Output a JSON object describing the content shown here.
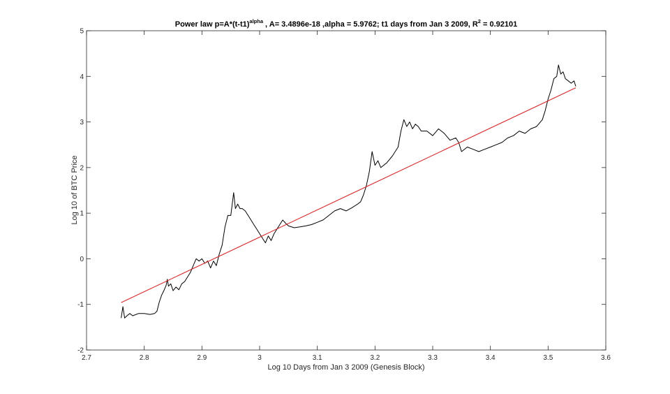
{
  "chart_data": {
    "type": "line",
    "title": {
      "prefix": "Power law p=A*(t-t1)",
      "sup1": "alpha",
      "middle": "  , A= 3.4896e-18 ,alpha = 5.9762; t1 days from Jan 3 2009, R",
      "sup2": "2",
      "suffix": " = 0.92101"
    },
    "xlabel": "Log 10 Days from Jan 3 2009 (Genesis Block)",
    "ylabel": "Log 10 of BTC Price",
    "xlim": [
      2.7,
      3.6
    ],
    "ylim": [
      -2,
      5
    ],
    "xticks": [
      2.7,
      2.8,
      2.9,
      3,
      3.1,
      3.2,
      3.3,
      3.4,
      3.5,
      3.6
    ],
    "xtick_labels": [
      "2.7",
      "2.8",
      "2.9",
      "3",
      "3.1",
      "3.2",
      "3.3",
      "3.4",
      "3.5",
      "3.6"
    ],
    "yticks": [
      -2,
      -1,
      0,
      1,
      2,
      3,
      4,
      5
    ],
    "ytick_labels": [
      "-2",
      "-1",
      "0",
      "1",
      "2",
      "3",
      "4",
      "5"
    ],
    "grid": false,
    "series": [
      {
        "color": "#000000",
        "x": [
          2.76,
          2.763,
          2.766,
          2.77,
          2.775,
          2.78,
          2.79,
          2.8,
          2.81,
          2.818,
          2.822,
          2.826,
          2.83,
          2.834,
          2.838,
          2.84,
          2.842,
          2.846,
          2.85,
          2.855,
          2.86,
          2.865,
          2.87,
          2.875,
          2.88,
          2.885,
          2.89,
          2.895,
          2.9,
          2.905,
          2.91,
          2.915,
          2.92,
          2.925,
          2.93,
          2.935,
          2.94,
          2.945,
          2.95,
          2.955,
          2.958,
          2.962,
          2.966,
          2.97,
          2.975,
          2.98,
          2.985,
          2.99,
          2.995,
          3.0,
          3.005,
          3.01,
          3.015,
          3.02,
          3.025,
          3.03,
          3.035,
          3.04,
          3.045,
          3.05,
          3.06,
          3.07,
          3.08,
          3.09,
          3.1,
          3.11,
          3.12,
          3.13,
          3.14,
          3.15,
          3.16,
          3.17,
          3.175,
          3.18,
          3.185,
          3.19,
          3.195,
          3.2,
          3.205,
          3.21,
          3.22,
          3.23,
          3.24,
          3.245,
          3.25,
          3.255,
          3.26,
          3.265,
          3.27,
          3.275,
          3.28,
          3.29,
          3.3,
          3.31,
          3.32,
          3.33,
          3.34,
          3.345,
          3.35,
          3.36,
          3.37,
          3.38,
          3.39,
          3.4,
          3.41,
          3.42,
          3.43,
          3.44,
          3.45,
          3.46,
          3.47,
          3.48,
          3.49,
          3.495,
          3.5,
          3.505,
          3.51,
          3.515,
          3.518,
          3.522,
          3.526,
          3.53,
          3.535,
          3.54,
          3.545,
          3.548
        ],
        "y": [
          -1.3,
          -1.05,
          -1.3,
          -1.25,
          -1.2,
          -1.25,
          -1.2,
          -1.2,
          -1.22,
          -1.2,
          -1.15,
          -0.95,
          -0.8,
          -0.7,
          -0.58,
          -0.45,
          -0.6,
          -0.55,
          -0.7,
          -0.62,
          -0.68,
          -0.55,
          -0.5,
          -0.4,
          -0.3,
          -0.15,
          0.0,
          -0.05,
          0.0,
          -0.1,
          -0.05,
          -0.2,
          -0.05,
          -0.15,
          0.1,
          0.3,
          0.7,
          0.95,
          0.95,
          1.45,
          1.1,
          1.2,
          1.1,
          1.1,
          1.05,
          0.95,
          0.85,
          0.75,
          0.65,
          0.55,
          0.45,
          0.35,
          0.5,
          0.4,
          0.55,
          0.65,
          0.75,
          0.85,
          0.78,
          0.72,
          0.68,
          0.7,
          0.72,
          0.75,
          0.8,
          0.85,
          0.95,
          1.05,
          1.1,
          1.05,
          1.12,
          1.2,
          1.25,
          1.4,
          1.6,
          1.9,
          2.35,
          2.05,
          2.15,
          2.0,
          2.1,
          2.25,
          2.45,
          2.8,
          3.05,
          2.9,
          3.0,
          2.85,
          2.95,
          2.9,
          2.8,
          2.8,
          2.7,
          2.85,
          2.75,
          2.6,
          2.65,
          2.55,
          2.35,
          2.45,
          2.4,
          2.35,
          2.4,
          2.45,
          2.5,
          2.55,
          2.65,
          2.7,
          2.8,
          2.75,
          2.85,
          2.9,
          3.05,
          3.25,
          3.5,
          3.7,
          3.95,
          4.0,
          4.25,
          4.05,
          4.1,
          3.95,
          3.9,
          3.85,
          3.9,
          3.78
        ]
      },
      {
        "color": "#d62728",
        "x": [
          2.76,
          3.548
        ],
        "y": [
          -0.96,
          3.75
        ]
      }
    ]
  }
}
